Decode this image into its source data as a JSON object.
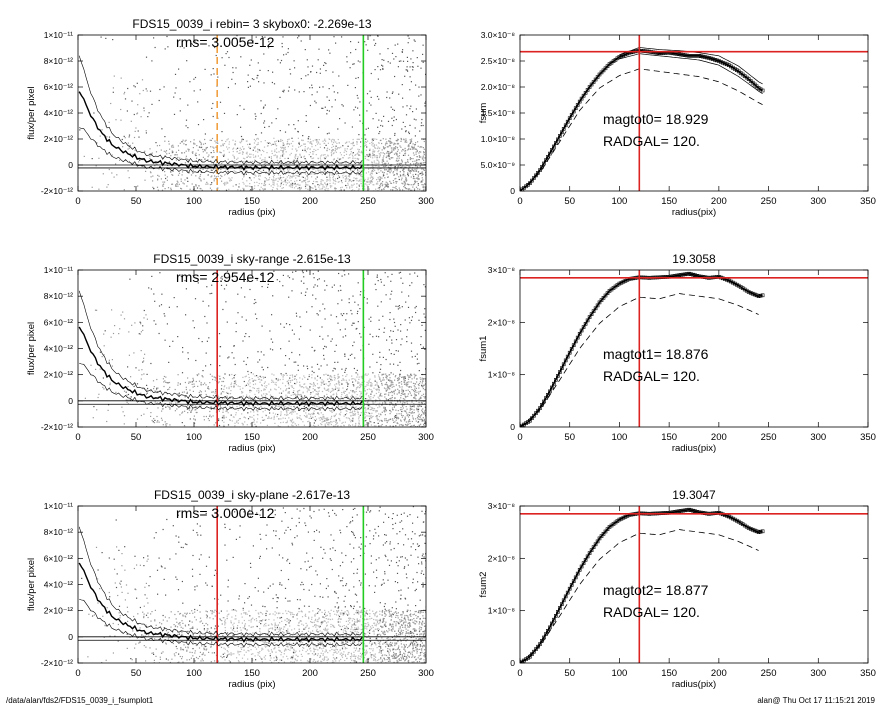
{
  "footer": {
    "path": "/data/alan/fds2/FDS15_0039_i_fsumplot1",
    "stamp": "alan@  Thu Oct 17 11:15:21 2019"
  },
  "chart_data": [
    {
      "type": "scatter",
      "title": "FDS15_0039_i rebin= 3    skybox0: -2.269e-13",
      "annotation": "rms= 3.005e-12",
      "xlabel": "radius (pix)",
      "ylabel": "flux/per pixel",
      "xlim": [
        0,
        300
      ],
      "ylim": [
        -2e-12,
        1e-11
      ],
      "xticks": [
        0,
        50,
        100,
        150,
        200,
        250,
        300
      ],
      "yticks": [
        {
          "value": 1e-11,
          "label": "1×10⁻¹¹"
        },
        {
          "value": 8e-12,
          "label": "8×10⁻¹²"
        },
        {
          "value": 6e-12,
          "label": "6×10⁻¹²"
        },
        {
          "value": 4e-12,
          "label": "4×10⁻¹²"
        },
        {
          "value": 2e-12,
          "label": "2×10⁻¹²"
        },
        {
          "value": 0,
          "label": "0"
        },
        {
          "value": -2e-12,
          "label": "-2×10⁻¹²"
        }
      ],
      "vlines": [
        {
          "x": 120,
          "color": "#f0a040",
          "dash": true
        },
        {
          "x": 246,
          "color": "#22cc22",
          "dash": false
        }
      ],
      "hlines": [
        -2.269e-13,
        0
      ],
      "profile": {
        "x": [
          3,
          6,
          10,
          15,
          20,
          25,
          30,
          40,
          50,
          60,
          70,
          80,
          90,
          100,
          120,
          150,
          200,
          245
        ],
        "y": [
          5.5e-12,
          4.8e-12,
          4e-12,
          3.2e-12,
          2.5e-12,
          2e-12,
          1.5e-12,
          1e-12,
          6e-13,
          3e-13,
          2e-13,
          1e-13,
          0,
          -1e-13,
          -1.5e-13,
          -2e-13,
          -2e-13,
          -2e-13
        ]
      }
    },
    {
      "type": "line",
      "xlabel": "radius(pix)",
      "ylabel": "fsum",
      "xlim": [
        0,
        350
      ],
      "ylim": [
        0,
        3e-08
      ],
      "xticks": [
        0,
        50,
        100,
        150,
        200,
        250,
        300,
        350
      ],
      "yticks": [
        {
          "value": 3e-08,
          "label": "3.0×10⁻⁸"
        },
        {
          "value": 2.5e-08,
          "label": "2.5×10⁻⁸"
        },
        {
          "value": 2e-08,
          "label": "2.0×10⁻⁸"
        },
        {
          "value": 1.5e-08,
          "label": "1.5×10⁻⁸"
        },
        {
          "value": 1e-08,
          "label": "1.0×10⁻⁸"
        },
        {
          "value": 5e-09,
          "label": "5.0×10⁻⁹"
        },
        {
          "value": 0,
          "label": "0"
        }
      ],
      "marker_x": 120,
      "marker_y": 2.68e-08,
      "annotations": [
        "magtot0=  18.929",
        "RADGAL=    120."
      ],
      "series": [
        {
          "style": "markers",
          "x": [
            0,
            10,
            20,
            30,
            40,
            50,
            60,
            70,
            80,
            90,
            100,
            110,
            120,
            130,
            140,
            150,
            160,
            170,
            180,
            190,
            200,
            210,
            220,
            230,
            240,
            245
          ],
          "y": [
            0,
            1.5e-09,
            4e-09,
            7.2e-09,
            1.06e-08,
            1.4e-08,
            1.72e-08,
            2e-08,
            2.24e-08,
            2.44e-08,
            2.58e-08,
            2.66e-08,
            2.7e-08,
            2.68e-08,
            2.65e-08,
            2.66e-08,
            2.63e-08,
            2.6e-08,
            2.6e-08,
            2.56e-08,
            2.5e-08,
            2.42e-08,
            2.3e-08,
            2.15e-08,
            1.98e-08,
            1.92e-08
          ]
        },
        {
          "style": "thin",
          "x": [
            100,
            120,
            140,
            160,
            180,
            200,
            220,
            240,
            245
          ],
          "y": [
            2.62e-08,
            2.76e-08,
            2.72e-08,
            2.7e-08,
            2.66e-08,
            2.6e-08,
            2.4e-08,
            2.1e-08,
            2.05e-08
          ]
        },
        {
          "style": "thin",
          "x": [
            100,
            120,
            140,
            160,
            180,
            200,
            220,
            240,
            245
          ],
          "y": [
            2.54e-08,
            2.64e-08,
            2.6e-08,
            2.56e-08,
            2.52e-08,
            2.42e-08,
            2.2e-08,
            1.92e-08,
            1.86e-08
          ]
        },
        {
          "style": "dashed",
          "x": [
            0,
            20,
            40,
            60,
            80,
            100,
            120,
            140,
            160,
            180,
            200,
            220,
            240,
            245
          ],
          "y": [
            0,
            3.5e-09,
            9.5e-09,
            1.55e-08,
            1.98e-08,
            2.22e-08,
            2.35e-08,
            2.3e-08,
            2.25e-08,
            2.2e-08,
            2.1e-08,
            1.92e-08,
            1.7e-08,
            1.65e-08
          ]
        }
      ]
    },
    {
      "type": "scatter",
      "title": "FDS15_0039_i sky-range -2.615e-13",
      "annotation": "rms= 2.954e-12",
      "xlabel": "radius (pix)",
      "ylabel": "flux/per pixel",
      "xlim": [
        0,
        300
      ],
      "ylim": [
        -2e-12,
        1e-11
      ],
      "xticks": [
        0,
        50,
        100,
        150,
        200,
        250,
        300
      ],
      "yticks": [
        {
          "value": 1e-11,
          "label": "1×10⁻¹¹"
        },
        {
          "value": 8e-12,
          "label": "8×10⁻¹²"
        },
        {
          "value": 6e-12,
          "label": "6×10⁻¹²"
        },
        {
          "value": 4e-12,
          "label": "4×10⁻¹²"
        },
        {
          "value": 2e-12,
          "label": "2×10⁻¹²"
        },
        {
          "value": 0,
          "label": "0"
        },
        {
          "value": -2e-12,
          "label": "-2×10⁻¹²"
        }
      ],
      "vlines": [
        {
          "x": 120,
          "color": "#dd2222",
          "dash": false
        },
        {
          "x": 246,
          "color": "#22cc22",
          "dash": false
        }
      ],
      "hlines": [
        -2.615e-13,
        0
      ],
      "profile": {
        "x": [
          3,
          6,
          10,
          15,
          20,
          25,
          30,
          40,
          50,
          60,
          70,
          80,
          90,
          100,
          120,
          150,
          200,
          245
        ],
        "y": [
          5.5e-12,
          4.8e-12,
          4e-12,
          3.2e-12,
          2.5e-12,
          2e-12,
          1.5e-12,
          1e-12,
          6e-13,
          3e-13,
          2e-13,
          1e-13,
          0,
          -1e-13,
          -1.5e-13,
          -2e-13,
          -2e-13,
          -2e-13
        ]
      }
    },
    {
      "type": "line",
      "title": "19.3058",
      "xlabel": "radius(pix)",
      "ylabel": "fsum1",
      "xlim": [
        0,
        350
      ],
      "ylim": [
        0,
        3e-08
      ],
      "xticks": [
        0,
        50,
        100,
        150,
        200,
        250,
        300,
        350
      ],
      "yticks": [
        {
          "value": 3e-08,
          "label": "3×10⁻⁸"
        },
        {
          "value": 2e-08,
          "label": "2×10⁻⁸"
        },
        {
          "value": 1e-08,
          "label": "1×10⁻⁸"
        },
        {
          "value": 0,
          "label": "0"
        }
      ],
      "marker_x": 120,
      "marker_y": 2.85e-08,
      "annotations": [
        "magtot1=  18.876",
        "RADGAL=    120."
      ],
      "series": [
        {
          "style": "markers",
          "x": [
            0,
            10,
            20,
            30,
            40,
            50,
            60,
            70,
            80,
            90,
            100,
            110,
            120,
            130,
            140,
            150,
            160,
            170,
            180,
            190,
            200,
            210,
            220,
            230,
            240,
            245
          ],
          "y": [
            0,
            1.2e-09,
            3.6e-09,
            6.8e-09,
            1.05e-08,
            1.42e-08,
            1.78e-08,
            2.1e-08,
            2.38e-08,
            2.6e-08,
            2.74e-08,
            2.83e-08,
            2.86e-08,
            2.85e-08,
            2.86e-08,
            2.87e-08,
            2.9e-08,
            2.93e-08,
            2.88e-08,
            2.85e-08,
            2.87e-08,
            2.8e-08,
            2.7e-08,
            2.58e-08,
            2.5e-08,
            2.52e-08
          ]
        },
        {
          "style": "dashed",
          "x": [
            0,
            20,
            40,
            60,
            80,
            100,
            120,
            140,
            160,
            180,
            200,
            220,
            240
          ],
          "y": [
            0,
            3.2e-09,
            9e-09,
            1.5e-08,
            1.98e-08,
            2.3e-08,
            2.48e-08,
            2.45e-08,
            2.55e-08,
            2.5e-08,
            2.45e-08,
            2.32e-08,
            2.15e-08
          ]
        }
      ]
    },
    {
      "type": "scatter",
      "title": "FDS15_0039_i sky-plane -2.617e-13",
      "annotation": "rms= 3.000e-12",
      "xlabel": "radius (pix)",
      "ylabel": "flux/per pixel",
      "xlim": [
        0,
        300
      ],
      "ylim": [
        -2e-12,
        1e-11
      ],
      "xticks": [
        0,
        50,
        100,
        150,
        200,
        250,
        300
      ],
      "yticks": [
        {
          "value": 1e-11,
          "label": "1×10⁻¹¹"
        },
        {
          "value": 8e-12,
          "label": "8×10⁻¹²"
        },
        {
          "value": 6e-12,
          "label": "6×10⁻¹²"
        },
        {
          "value": 4e-12,
          "label": "4×10⁻¹²"
        },
        {
          "value": 2e-12,
          "label": "2×10⁻¹²"
        },
        {
          "value": 0,
          "label": "0"
        },
        {
          "value": -2e-12,
          "label": "-2×10⁻¹²"
        }
      ],
      "vlines": [
        {
          "x": 120,
          "color": "#dd2222",
          "dash": false
        },
        {
          "x": 246,
          "color": "#22cc22",
          "dash": false
        }
      ],
      "hlines": [
        -2.617e-13,
        0
      ],
      "profile": {
        "x": [
          3,
          6,
          10,
          15,
          20,
          25,
          30,
          40,
          50,
          60,
          70,
          80,
          90,
          100,
          120,
          150,
          200,
          245
        ],
        "y": [
          5.5e-12,
          4.8e-12,
          4e-12,
          3.2e-12,
          2.5e-12,
          2e-12,
          1.5e-12,
          1e-12,
          6e-13,
          3e-13,
          2e-13,
          1e-13,
          0,
          -1e-13,
          -1.5e-13,
          -2e-13,
          -2e-13,
          -2e-13
        ]
      }
    },
    {
      "type": "line",
      "title": "19.3047",
      "xlabel": "radius(pix)",
      "ylabel": "fsum2",
      "xlim": [
        0,
        350
      ],
      "ylim": [
        0,
        3e-08
      ],
      "xticks": [
        0,
        50,
        100,
        150,
        200,
        250,
        300,
        350
      ],
      "yticks": [
        {
          "value": 3e-08,
          "label": "3×10⁻⁸"
        },
        {
          "value": 2e-08,
          "label": "2×10⁻⁸"
        },
        {
          "value": 1e-08,
          "label": "1×10⁻⁸"
        },
        {
          "value": 0,
          "label": "0"
        }
      ],
      "marker_x": 120,
      "marker_y": 2.85e-08,
      "annotations": [
        "magtot2=  18.877",
        "RADGAL=    120."
      ],
      "series": [
        {
          "style": "markers",
          "x": [
            0,
            10,
            20,
            30,
            40,
            50,
            60,
            70,
            80,
            90,
            100,
            110,
            120,
            130,
            140,
            150,
            160,
            170,
            180,
            190,
            200,
            210,
            220,
            230,
            240,
            245
          ],
          "y": [
            0,
            1.2e-09,
            3.6e-09,
            6.8e-09,
            1.05e-08,
            1.42e-08,
            1.78e-08,
            2.1e-08,
            2.38e-08,
            2.6e-08,
            2.74e-08,
            2.83e-08,
            2.86e-08,
            2.85e-08,
            2.86e-08,
            2.87e-08,
            2.9e-08,
            2.93e-08,
            2.88e-08,
            2.85e-08,
            2.87e-08,
            2.8e-08,
            2.7e-08,
            2.58e-08,
            2.5e-08,
            2.52e-08
          ]
        },
        {
          "style": "dashed",
          "x": [
            0,
            20,
            40,
            60,
            80,
            100,
            120,
            140,
            160,
            180,
            200,
            220,
            240
          ],
          "y": [
            0,
            3.2e-09,
            9e-09,
            1.5e-08,
            1.98e-08,
            2.3e-08,
            2.48e-08,
            2.45e-08,
            2.55e-08,
            2.5e-08,
            2.45e-08,
            2.32e-08,
            2.15e-08
          ]
        }
      ]
    }
  ]
}
